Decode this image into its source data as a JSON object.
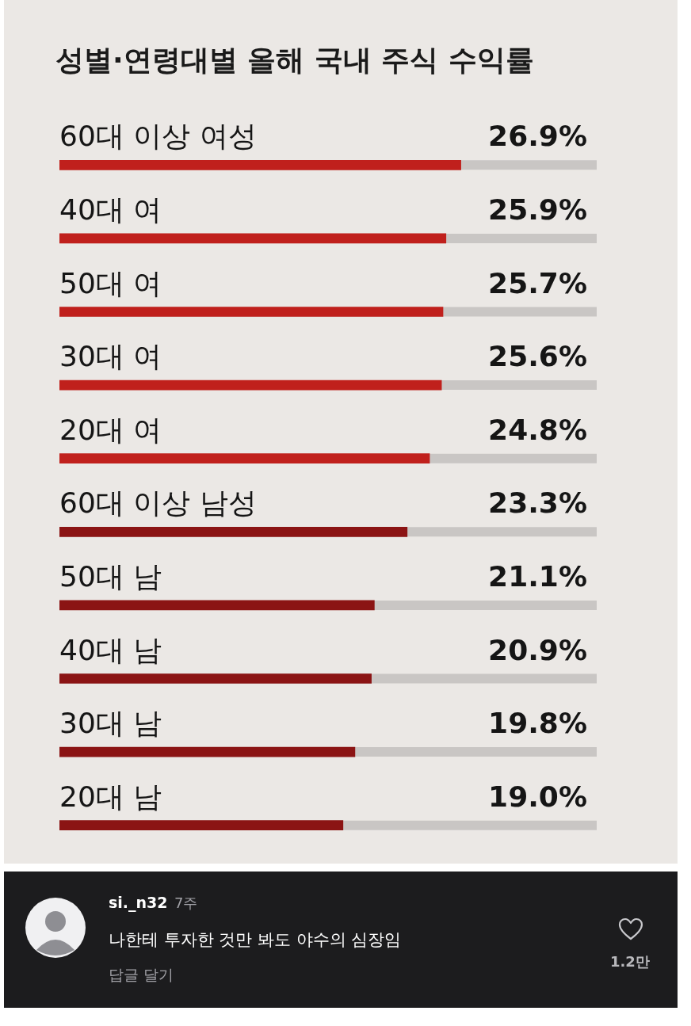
{
  "chart_data": {
    "type": "bar",
    "orientation": "horizontal",
    "title": "성별·연령대별 올해 국내 주식 수익률",
    "categories": [
      "60대 이상 여성",
      "40대 여",
      "50대 여",
      "30대 여",
      "20대 여",
      "60대 이상 남성",
      "50대 남",
      "40대 남",
      "30대 남",
      "20대 남"
    ],
    "values": [
      26.9,
      25.9,
      25.7,
      25.6,
      24.8,
      23.3,
      21.1,
      20.9,
      19.8,
      19.0
    ],
    "value_labels": [
      "26.9%",
      "25.9%",
      "25.7%",
      "25.6%",
      "24.8%",
      "23.3%",
      "21.1%",
      "20.9%",
      "19.8%",
      "19.0%"
    ],
    "colors": [
      "#c0201c",
      "#c0201c",
      "#c0201c",
      "#c0201c",
      "#c0201c",
      "#8b1414",
      "#8b1414",
      "#8b1414",
      "#8b1414",
      "#8b1414"
    ],
    "xlim": [
      0,
      36
    ],
    "tick_labels": false,
    "grid": false,
    "legend": false,
    "annotations": [
      "si._n32",
      "7주",
      "나한테 투자한 것만 봐도 야수의 심장임",
      "답글 달기",
      "1.2만"
    ]
  }
}
